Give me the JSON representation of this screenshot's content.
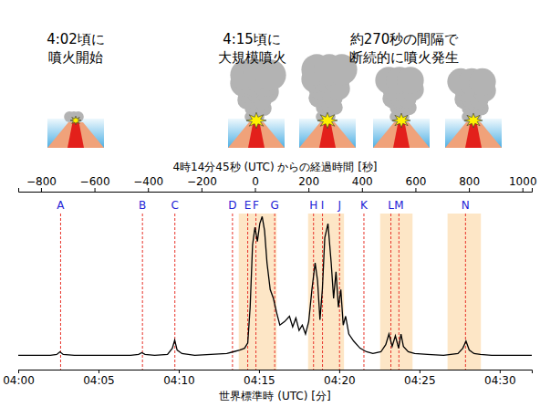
{
  "chart_data": {
    "type": "line",
    "xlabel": "世界標準時 (UTC) [分]",
    "x2label": "4時14分45秒 (UTC) からの経過時間 [秒]",
    "xlim": [
      0,
      32
    ],
    "xticks": [
      {
        "value": 0,
        "label": "04:00"
      },
      {
        "value": 5,
        "label": "04:05"
      },
      {
        "value": 10,
        "label": "04:10"
      },
      {
        "value": 15,
        "label": "04:15"
      },
      {
        "value": 20,
        "label": "04:20"
      },
      {
        "value": 25,
        "label": "04:25"
      },
      {
        "value": 30,
        "label": "04:30"
      }
    ],
    "x2lim": [
      -885,
      1035
    ],
    "x2ticks": [
      {
        "value": -800,
        "label": "−800"
      },
      {
        "value": -600,
        "label": "−600"
      },
      {
        "value": -400,
        "label": "−400"
      },
      {
        "value": -200,
        "label": "−200"
      },
      0,
      200,
      400,
      600,
      800,
      1000
    ],
    "ylim": [
      0,
      1
    ],
    "tick_labels": "x",
    "color": "#000000",
    "x": [
      0,
      1,
      2,
      2.4,
      2.6,
      2.8,
      3.5,
      5,
      7,
      7.5,
      7.7,
      7.9,
      8.5,
      9.3,
      9.6,
      9.75,
      9.9,
      10.2,
      11,
      12,
      13,
      13.4,
      13.8,
      14.1,
      14.3,
      14.45,
      14.6,
      14.75,
      14.9,
      15.05,
      15.2,
      15.35,
      15.5,
      15.7,
      15.9,
      16.1,
      16.3,
      16.6,
      16.9,
      17.1,
      17.3,
      17.5,
      17.7,
      17.9,
      18.1,
      18.3,
      18.5,
      18.65,
      18.8,
      18.95,
      19.1,
      19.3,
      19.5,
      19.65,
      19.8,
      19.95,
      20.1,
      20.25,
      20.4,
      20.6,
      20.9,
      21.3,
      21.7,
      22.1,
      22.6,
      22.9,
      23.1,
      23.3,
      23.5,
      23.7,
      23.85,
      24.0,
      24.3,
      24.7,
      25.5,
      26.5,
      27.4,
      27.7,
      27.9,
      28.1,
      28.4,
      28.8,
      29.5,
      31,
      32
    ],
    "values": [
      0.08,
      0.08,
      0.08,
      0.085,
      0.1,
      0.085,
      0.08,
      0.08,
      0.08,
      0.085,
      0.095,
      0.085,
      0.08,
      0.085,
      0.12,
      0.165,
      0.11,
      0.09,
      0.08,
      0.085,
      0.09,
      0.1,
      0.11,
      0.12,
      0.15,
      0.35,
      0.7,
      0.8,
      0.72,
      0.82,
      0.86,
      0.78,
      0.6,
      0.45,
      0.4,
      0.32,
      0.25,
      0.27,
      0.3,
      0.24,
      0.29,
      0.22,
      0.25,
      0.2,
      0.27,
      0.45,
      0.6,
      0.5,
      0.28,
      0.45,
      0.74,
      0.82,
      0.6,
      0.4,
      0.55,
      0.35,
      0.45,
      0.25,
      0.3,
      0.2,
      0.16,
      0.12,
      0.1,
      0.09,
      0.1,
      0.14,
      0.2,
      0.13,
      0.19,
      0.12,
      0.2,
      0.13,
      0.1,
      0.09,
      0.085,
      0.08,
      0.09,
      0.12,
      0.16,
      0.11,
      0.09,
      0.085,
      0.08,
      0.08,
      0.08
    ],
    "events": {
      "labels": [
        "A",
        "B",
        "C",
        "D",
        "E",
        "F",
        "G",
        "H",
        "I",
        "J",
        "K",
        "L",
        "M",
        "N"
      ],
      "x": [
        2.64,
        7.74,
        9.76,
        13.35,
        14.3,
        14.81,
        15.98,
        18.4,
        18.96,
        20.02,
        21.54,
        23.22,
        23.72,
        27.87
      ],
      "color": "#e8332a"
    },
    "bands": {
      "ranges": [
        [
          13.74,
          16.1
        ],
        [
          18.06,
          20.3
        ],
        [
          22.55,
          24.57
        ],
        [
          26.75,
          28.83
        ]
      ],
      "color": "#fde6c6"
    },
    "annotations": [
      [
        "4:02頃に",
        "噴火開始"
      ],
      [
        "4:15頃に",
        "大規模噴火"
      ],
      [
        "約270秒の間隔で",
        "断続的に噴火発生"
      ]
    ]
  }
}
